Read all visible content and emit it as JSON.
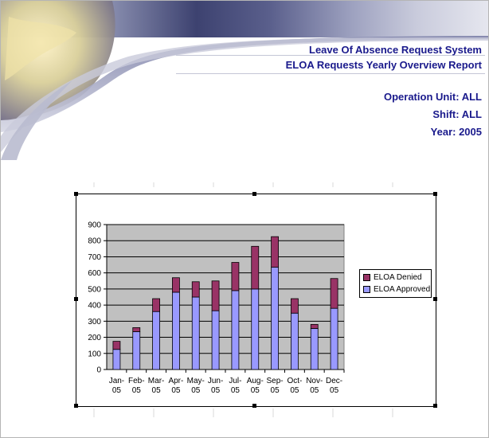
{
  "header": {
    "system_title": "Leave Of Absence Request System",
    "report_title": "ELOA Requests Yearly Overview Report",
    "operation_unit": "Operation Unit: ALL",
    "shift": "Shift: ALL",
    "year": "Year: 2005"
  },
  "colors": {
    "approved": "#9999ff",
    "denied": "#993366",
    "plot_bg": "#c0c0c0",
    "header_text": "#1a1a8c"
  },
  "chart_data": {
    "type": "bar",
    "stacked": true,
    "categories": [
      "Jan-\n05",
      "Feb-\n05",
      "Mar-\n05",
      "Apr-\n05",
      "May-\n05",
      "Jun-\n05",
      "Jul-\n05",
      "Aug-\n05",
      "Sep-\n05",
      "Oct-\n05",
      "Nov-\n05",
      "Dec-\n05"
    ],
    "series": [
      {
        "name": "ELOA Approved",
        "values": [
          125,
          235,
          360,
          480,
          450,
          365,
          490,
          500,
          635,
          350,
          255,
          380
        ]
      },
      {
        "name": "ELOA Denied",
        "values": [
          50,
          25,
          80,
          90,
          95,
          185,
          175,
          265,
          190,
          90,
          25,
          185
        ]
      }
    ],
    "ylim": [
      0,
      900
    ],
    "yticks": [
      0,
      100,
      200,
      300,
      400,
      500,
      600,
      700,
      800,
      900
    ],
    "grid": true,
    "legend_position": "right",
    "legend_order": [
      "ELOA Denied",
      "ELOA Approved"
    ]
  }
}
